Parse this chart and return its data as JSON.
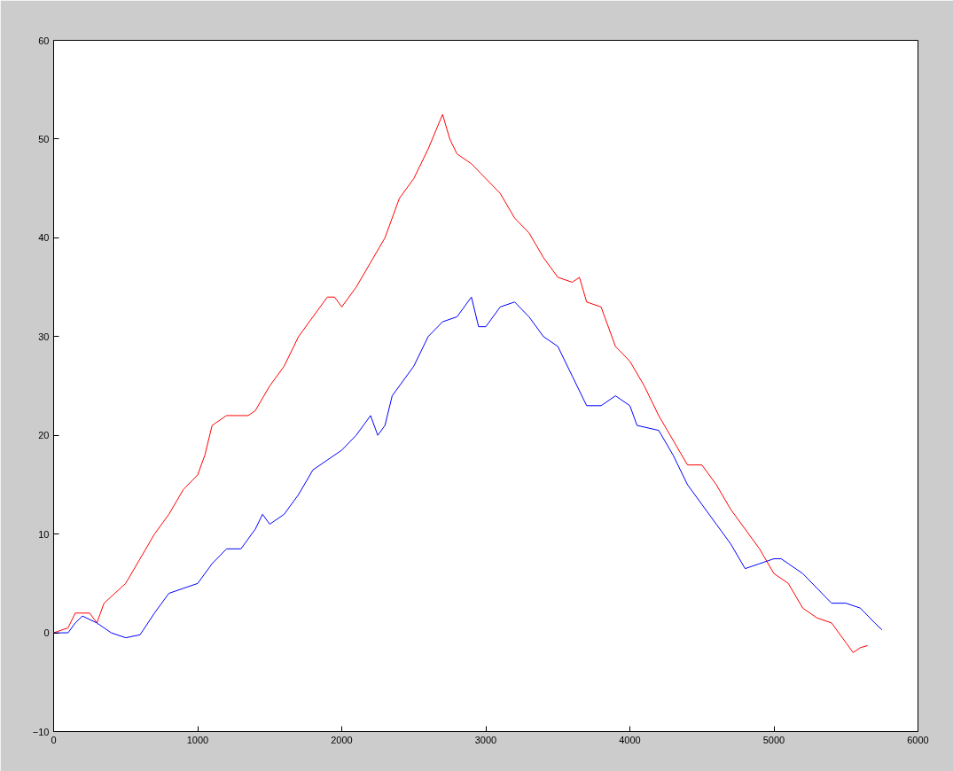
{
  "chart_data": {
    "type": "line",
    "xlim": [
      0,
      6000
    ],
    "ylim": [
      -10,
      60
    ],
    "xticks": [
      0,
      1000,
      2000,
      3000,
      4000,
      5000,
      6000
    ],
    "yticks": [
      -10,
      0,
      10,
      20,
      30,
      40,
      50,
      60
    ],
    "grid": false,
    "series": [
      {
        "color": "#ff0000",
        "x": [
          0,
          100,
          150,
          250,
          300,
          350,
          500,
          600,
          700,
          800,
          900,
          1000,
          1050,
          1100,
          1200,
          1350,
          1400,
          1500,
          1600,
          1700,
          1800,
          1900,
          1950,
          2000,
          2100,
          2200,
          2300,
          2400,
          2500,
          2600,
          2700,
          2750,
          2800,
          2900,
          3000,
          3100,
          3200,
          3300,
          3400,
          3500,
          3600,
          3650,
          3700,
          3800,
          3900,
          4000,
          4100,
          4200,
          4300,
          4400,
          4500,
          4600,
          4700,
          4800,
          4900,
          5000,
          5100,
          5200,
          5300,
          5400,
          5500,
          5550,
          5600,
          5650
        ],
        "values": [
          0,
          0.5,
          2,
          2,
          1,
          3,
          5,
          7.5,
          10,
          12,
          14.5,
          16,
          18,
          21,
          22,
          22,
          22.5,
          25,
          27,
          30,
          32,
          34,
          34,
          33,
          35,
          37.5,
          40,
          44,
          46,
          49,
          52.5,
          50,
          48.5,
          47.5,
          46,
          44.5,
          42,
          40.5,
          38,
          36,
          35.5,
          36,
          33.5,
          33,
          29,
          27.5,
          25,
          22,
          19.5,
          17,
          17,
          15,
          12.5,
          10.5,
          8.5,
          6,
          5,
          2.5,
          1.5,
          1,
          -1,
          -2,
          -1.5,
          -1.3
        ]
      },
      {
        "color": "#0000ff",
        "x": [
          0,
          100,
          150,
          200,
          300,
          400,
          500,
          600,
          700,
          800,
          900,
          1000,
          1100,
          1200,
          1300,
          1400,
          1450,
          1500,
          1600,
          1700,
          1800,
          1900,
          2000,
          2100,
          2200,
          2250,
          2300,
          2350,
          2500,
          2600,
          2700,
          2800,
          2900,
          2950,
          3000,
          3100,
          3200,
          3300,
          3400,
          3500,
          3600,
          3700,
          3800,
          3900,
          4000,
          4050,
          4200,
          4300,
          4400,
          4500,
          4600,
          4700,
          4800,
          4900,
          5000,
          5050,
          5100,
          5200,
          5300,
          5400,
          5500,
          5600,
          5700,
          5750
        ],
        "values": [
          0,
          0,
          1,
          1.7,
          1,
          0,
          -0.5,
          -0.2,
          2,
          4,
          4.5,
          5,
          7,
          8.5,
          8.5,
          10.5,
          12,
          11,
          12,
          14,
          16.5,
          17.5,
          18.5,
          20,
          22,
          20,
          21,
          24,
          27,
          30,
          31.5,
          32,
          34,
          31,
          31,
          33,
          33.5,
          32,
          30,
          29,
          26,
          23,
          23,
          24,
          23,
          21,
          20.5,
          18,
          15,
          13,
          11,
          9,
          6.5,
          7,
          7.5,
          7.5,
          7,
          6,
          4.5,
          3,
          3,
          2.5,
          1,
          0.3
        ]
      }
    ]
  }
}
